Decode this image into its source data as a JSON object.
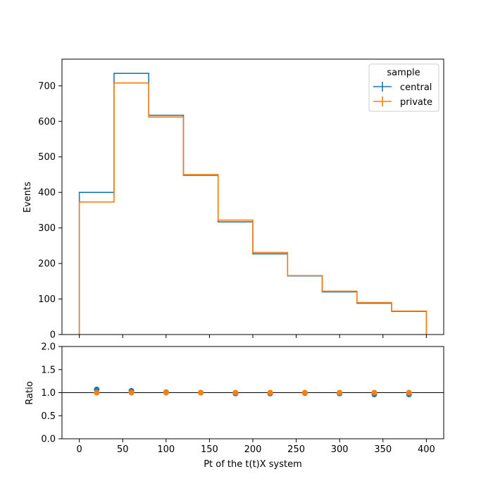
{
  "chart_data": [
    {
      "type": "line",
      "step": true,
      "xlabel": "",
      "ylabel": "Events",
      "xlim": [
        -20,
        420
      ],
      "ylim": [
        0,
        775
      ],
      "x_ticks": [
        0,
        50,
        100,
        150,
        200,
        250,
        300,
        350,
        400
      ],
      "y_ticks": [
        0,
        100,
        200,
        300,
        400,
        500,
        600,
        700
      ],
      "y_tick_labels": [
        "0",
        "100",
        "200",
        "300",
        "400",
        "500",
        "600",
        "700"
      ],
      "bin_edges": [
        0,
        40,
        80,
        120,
        160,
        200,
        240,
        280,
        320,
        360,
        400
      ],
      "series": [
        {
          "name": "central",
          "color": "#1f77b4",
          "values": [
            400,
            735,
            617,
            448,
            317,
            227,
            165,
            120,
            88,
            65
          ]
        },
        {
          "name": "private",
          "color": "#ff7f0e",
          "values": [
            373,
            708,
            612,
            450,
            322,
            231,
            166,
            122,
            90,
            66
          ]
        }
      ],
      "legend": {
        "title": "sample",
        "position": "top-right",
        "entries": [
          "central",
          "private"
        ]
      },
      "grid": false
    },
    {
      "type": "scatter",
      "xlabel": "Pt of the t(t)X system",
      "ylabel": "Ratio",
      "xlim": [
        -20,
        420
      ],
      "ylim": [
        0.0,
        2.0
      ],
      "x_ticks": [
        0,
        50,
        100,
        150,
        200,
        250,
        300,
        350,
        400
      ],
      "x_tick_labels": [
        "0",
        "50",
        "100",
        "150",
        "200",
        "250",
        "300",
        "350",
        "400"
      ],
      "y_ticks": [
        0.0,
        0.5,
        1.0,
        1.5,
        2.0
      ],
      "y_tick_labels": [
        "0.0",
        "0.5",
        "1.0",
        "1.5",
        "2.0"
      ],
      "x": [
        20,
        60,
        100,
        140,
        180,
        220,
        260,
        300,
        340,
        380
      ],
      "reference_line": 1.0,
      "series": [
        {
          "name": "central",
          "color": "#1f77b4",
          "values": [
            1.07,
            1.04,
            1.01,
            1.0,
            0.98,
            0.98,
            0.99,
            0.98,
            0.96,
            0.96
          ]
        },
        {
          "name": "private",
          "color": "#ff7f0e",
          "values": [
            1.0,
            1.0,
            1.0,
            1.0,
            1.0,
            1.0,
            1.0,
            1.0,
            1.0,
            1.0
          ]
        }
      ],
      "grid": false
    }
  ]
}
